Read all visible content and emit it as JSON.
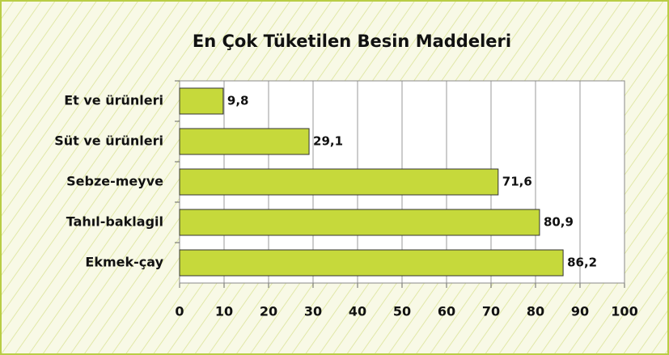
{
  "chart_data": {
    "type": "bar",
    "orientation": "horizontal",
    "title": "En Çok Tüketilen Besin Maddeleri",
    "categories": [
      "Et ve ürünleri",
      "Süt ve ürünleri",
      "Sebze-meyve",
      "Tahıl-baklagil",
      "Ekmek-çay"
    ],
    "values": [
      9.8,
      29.1,
      71.6,
      80.9,
      86.2
    ],
    "value_labels": [
      "9,8",
      "29,1",
      "71,6",
      "80,9",
      "86,2"
    ],
    "color": "#c6d93b",
    "xlim": [
      0,
      100
    ],
    "xticks": [
      0,
      10,
      20,
      30,
      40,
      50,
      60,
      70,
      80,
      90,
      100
    ],
    "grid": true
  }
}
